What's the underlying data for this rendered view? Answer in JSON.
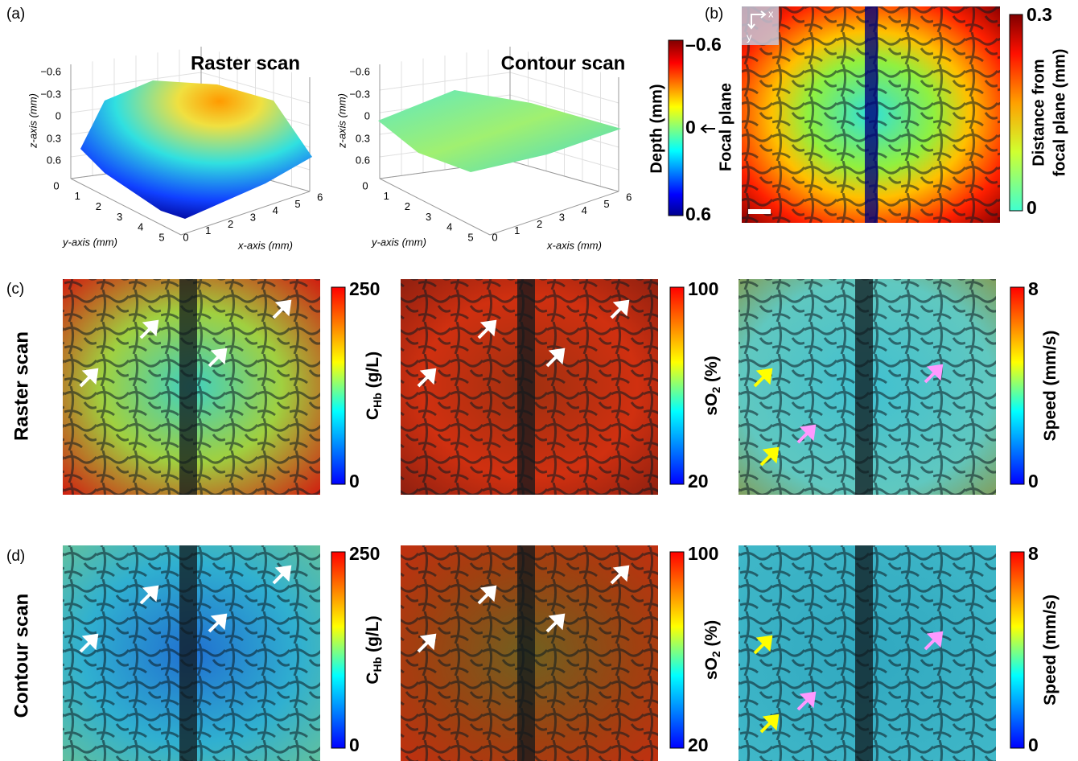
{
  "panel_labels": [
    "(a)",
    "(b)",
    "(c)",
    "(d)"
  ],
  "panel_a": {
    "plots": [
      {
        "title": "Raster scan",
        "z_axis_label": "z-axis (mm)",
        "y_axis_label": "y-axis (mm)",
        "x_axis_label": "x-axis (mm)",
        "z_ticks": [
          "−0.6",
          "−0.3",
          "0",
          "0.3",
          "0.6"
        ],
        "y_ticks": [
          "0",
          "1",
          "2",
          "3",
          "4",
          "5"
        ],
        "x_ticks": [
          "0",
          "1",
          "2",
          "3",
          "4",
          "5",
          "6"
        ]
      },
      {
        "title": "Contour scan",
        "z_axis_label": "z-axis (mm)",
        "y_axis_label": "y-axis (mm)",
        "x_axis_label": "x-axis (mm)",
        "z_ticks": [
          "−0.6",
          "−0.3",
          "0",
          "0.3",
          "0.6"
        ],
        "y_ticks": [
          "0",
          "1",
          "2",
          "3",
          "4",
          "5"
        ],
        "x_ticks": [
          "0",
          "1",
          "2",
          "3",
          "4",
          "5",
          "6"
        ]
      }
    ],
    "colorbar": {
      "label": "Depth (mm)",
      "top": "–0.6",
      "middle": "0",
      "bottom": "0.6",
      "annotation": "Focal plane"
    }
  },
  "panel_b": {
    "inset_x": "x",
    "inset_y": "y",
    "colorbar": {
      "top": "0.3",
      "bottom": "0",
      "label_lines": [
        "Distance from",
        "focal plane (mm)"
      ]
    }
  },
  "row_labels": [
    "Raster scan",
    "Contour scan"
  ],
  "colorbars": [
    {
      "label": {
        "main": "C",
        "sub": "Hb",
        "unit": " (g/L)"
      },
      "top": "250",
      "bottom": "0"
    },
    {
      "label": {
        "main": "sO",
        "sub": "2",
        "unit": " (%)"
      },
      "top": "100",
      "bottom": "20"
    },
    {
      "label": {
        "main": "Speed (mm/s)",
        "sub": "",
        "unit": ""
      },
      "top": "8",
      "bottom": "0"
    }
  ]
}
